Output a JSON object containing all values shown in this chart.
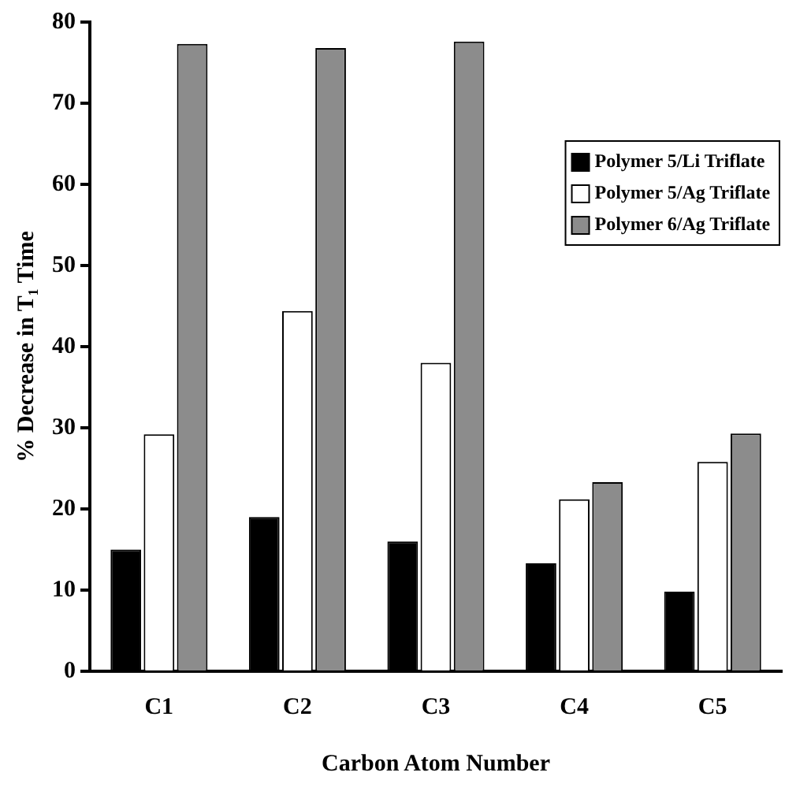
{
  "chart_data": {
    "type": "bar",
    "xlabel": "Carbon Atom Number",
    "ylabel": "% Decrease in T₁ Time",
    "categories": [
      "C1",
      "C2",
      "C3",
      "C4",
      "C5"
    ],
    "series": [
      {
        "name": "Polymer 5/Li Triflate",
        "color": "#000000",
        "values": [
          15.0,
          19.0,
          16.0,
          13.3,
          9.8
        ]
      },
      {
        "name": "Polymer 5/Ag Triflate",
        "color": "#ffffff",
        "values": [
          29.2,
          44.4,
          38.0,
          21.2,
          25.8
        ]
      },
      {
        "name": "Polymer 6/Ag Triflate",
        "color": "#8c8c8c",
        "values": [
          77.3,
          76.8,
          77.6,
          23.3,
          29.3
        ]
      }
    ],
    "ylim": [
      0,
      80
    ],
    "yticks": [
      0,
      10,
      20,
      30,
      40,
      50,
      60,
      70,
      80
    ],
    "grid": false,
    "legend": "top right"
  }
}
